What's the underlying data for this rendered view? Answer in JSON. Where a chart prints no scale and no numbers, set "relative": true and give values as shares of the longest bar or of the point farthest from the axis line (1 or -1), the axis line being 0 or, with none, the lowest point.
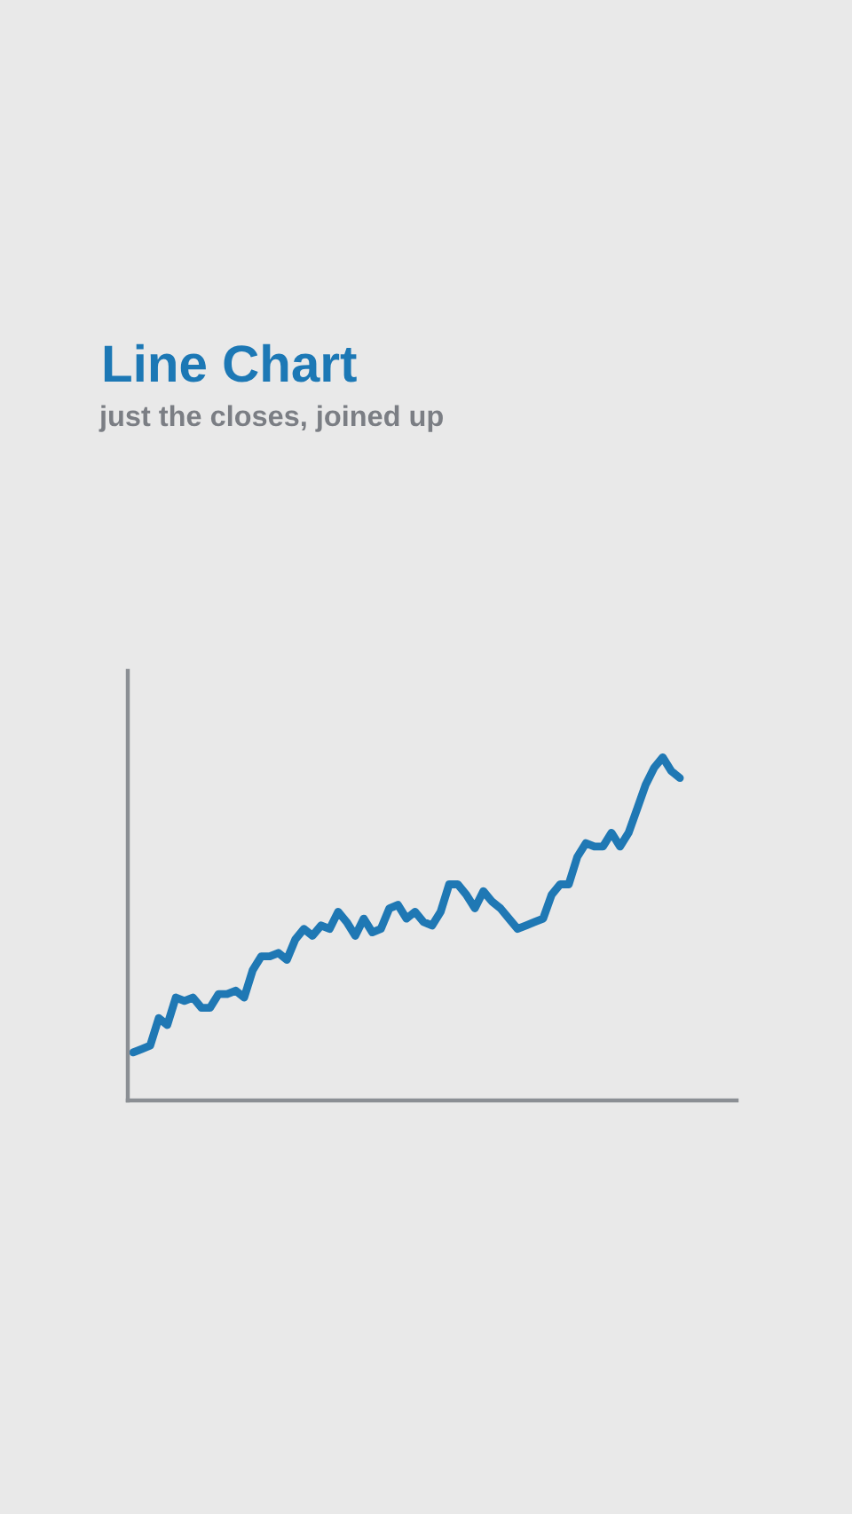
{
  "chart_data": {
    "type": "line",
    "title": "Line Chart",
    "subtitle": "just the closes, joined up",
    "relative": true,
    "categories": [
      null,
      null,
      null,
      null,
      null,
      null,
      null,
      null,
      null,
      null,
      null,
      null,
      null,
      null,
      null,
      null,
      null,
      null,
      null,
      null,
      null,
      null,
      null,
      null,
      null,
      null,
      null,
      null,
      null,
      null,
      null,
      null,
      null,
      null,
      null,
      null,
      null,
      null,
      null,
      null,
      null,
      null,
      null,
      null,
      null,
      null,
      null,
      null,
      null,
      null,
      null,
      null,
      null,
      null,
      null,
      null,
      null,
      null,
      null,
      null,
      null,
      null,
      null,
      null,
      null
    ],
    "series": [
      {
        "color": "#1f78b4",
        "values": [
          0.14,
          0.15,
          0.16,
          0.24,
          0.22,
          0.3,
          0.29,
          0.3,
          0.27,
          0.27,
          0.31,
          0.31,
          0.32,
          0.3,
          0.38,
          0.42,
          0.42,
          0.43,
          0.41,
          0.47,
          0.5,
          0.48,
          0.51,
          0.5,
          0.55,
          0.52,
          0.48,
          0.53,
          0.49,
          0.5,
          0.56,
          0.57,
          0.53,
          0.55,
          0.52,
          0.51,
          0.55,
          0.63,
          0.63,
          0.6,
          0.56,
          0.61,
          0.58,
          0.56,
          0.53,
          0.5,
          0.51,
          0.52,
          0.53,
          0.6,
          0.63,
          0.63,
          0.71,
          0.75,
          0.74,
          0.74,
          0.78,
          0.74,
          0.78,
          0.85,
          0.92,
          0.97,
          1.0,
          0.96,
          0.94
        ]
      }
    ],
    "marker": "none",
    "line_style": "solid"
  }
}
